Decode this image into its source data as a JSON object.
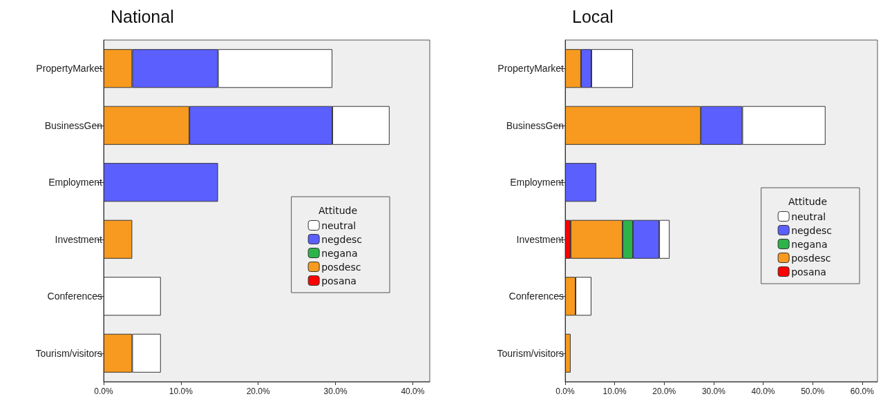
{
  "chart_data": [
    {
      "type": "bar",
      "title": "National",
      "orientation": "horizontal",
      "stacked": true,
      "legend_title": "Attitude",
      "legend": "right",
      "grid": false,
      "categories": [
        "PropertyMarket",
        "BusinessGen",
        "Employment",
        "Investment",
        "Conferences",
        "Tourism/visitors"
      ],
      "xlim": [
        0,
        42.2
      ],
      "xticks": [
        {
          "value": 0,
          "label": "0.0%"
        },
        {
          "value": 10,
          "label": "10.0%"
        },
        {
          "value": 20,
          "label": "20.0%"
        },
        {
          "value": 30,
          "label": "30.0%"
        },
        {
          "value": 40,
          "label": "40.0%"
        }
      ],
      "series": [
        {
          "name": "posana",
          "color": "#ff0000",
          "values": [
            null,
            null,
            null,
            null,
            null,
            null
          ]
        },
        {
          "name": "posdesc",
          "color": "#f79a1f",
          "values": [
            3.7,
            11.1,
            null,
            3.7,
            null,
            3.7
          ]
        },
        {
          "name": "negana",
          "color": "#2db34a",
          "values": [
            null,
            null,
            null,
            null,
            null,
            null
          ]
        },
        {
          "name": "negdesc",
          "color": "#5b5ffe",
          "values": [
            11.1,
            18.5,
            14.8,
            null,
            null,
            null
          ]
        },
        {
          "name": "neutral",
          "color": "#ffffff",
          "values": [
            14.8,
            7.4,
            null,
            null,
            7.4,
            3.7
          ]
        }
      ]
    },
    {
      "type": "bar",
      "title": "Local",
      "orientation": "horizontal",
      "stacked": true,
      "legend_title": "Attitude",
      "legend": "right",
      "grid": false,
      "categories": [
        "PropertyMarket",
        "BusinessGen",
        "Employment",
        "Investment",
        "Conferences",
        "Tourism/visitors"
      ],
      "xlim": [
        0,
        63.1
      ],
      "xticks": [
        {
          "value": 0,
          "label": "0.0%"
        },
        {
          "value": 10,
          "label": "10.0%"
        },
        {
          "value": 20,
          "label": "20.0%"
        },
        {
          "value": 30,
          "label": "30.0%"
        },
        {
          "value": 40,
          "label": "40.0%"
        },
        {
          "value": 50,
          "label": "50.0%"
        },
        {
          "value": 60,
          "label": "60.0%"
        }
      ],
      "series": [
        {
          "name": "posana",
          "color": "#ff0000",
          "values": [
            null,
            null,
            null,
            1.1,
            null,
            null
          ]
        },
        {
          "name": "posdesc",
          "color": "#f79a1f",
          "values": [
            3.2,
            27.4,
            null,
            10.5,
            2.1,
            1.1
          ]
        },
        {
          "name": "negana",
          "color": "#2db34a",
          "values": [
            null,
            null,
            null,
            2.1,
            null,
            null
          ]
        },
        {
          "name": "negdesc",
          "color": "#5b5ffe",
          "values": [
            2.1,
            8.4,
            6.3,
            5.3,
            null,
            null
          ]
        },
        {
          "name": "neutral",
          "color": "#ffffff",
          "values": [
            8.4,
            16.8,
            null,
            2.1,
            3.2,
            null
          ]
        }
      ]
    }
  ]
}
